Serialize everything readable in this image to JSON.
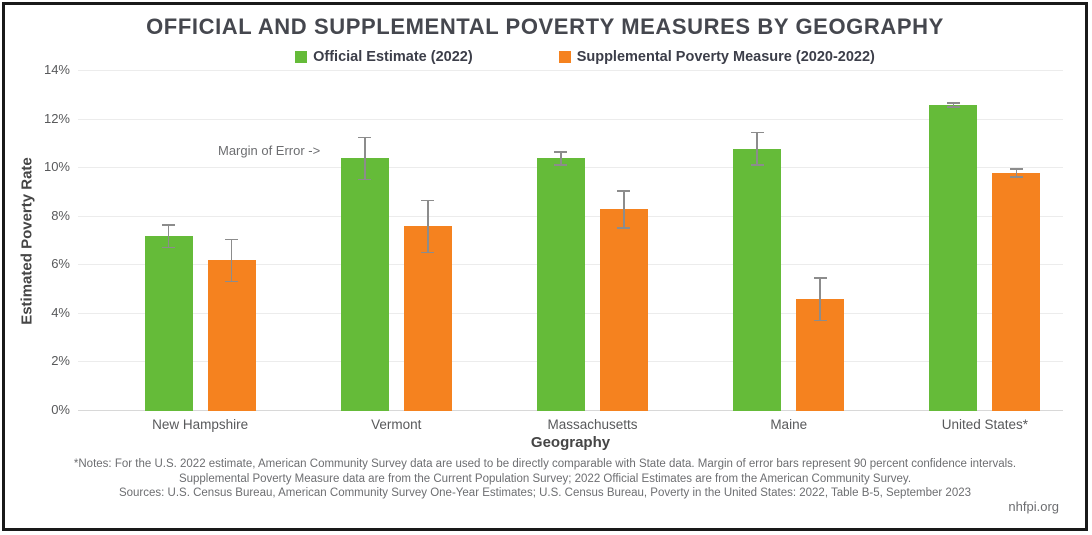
{
  "footer": {
    "notes_line1": "*Notes: For the U.S. 2022 estimate, American Community Survey data are used to be directly comparable with State data. Margin of error bars represent 90 percent confidence intervals.",
    "notes_line2": "Supplemental Poverty Measure data are from the Current Population Survey; 2022 Official Estimates are from the American Community Survey.",
    "notes_line3": "Sources: U.S. Census Bureau, American Community Survey One-Year Estimates; U.S. Census Bureau, Poverty in the United States: 2022, Table B-5, September 2023",
    "website": "nhfpi.org"
  },
  "chart_data": {
    "type": "bar",
    "title": "OFFICIAL AND SUPPLEMENTAL POVERTY MEASURES BY GEOGRAPHY",
    "xlabel": "Geography",
    "ylabel": "Estimated Poverty Rate",
    "ylim": [
      0,
      14
    ],
    "ytick_step": 2,
    "ytick_suffix": "%",
    "grid": true,
    "legend_position": "top",
    "categories": [
      "New Hampshire",
      "Vermont",
      "Massachusetts",
      "Maine",
      "United States*"
    ],
    "series": [
      {
        "name": "Official Estimate (2022)",
        "color": "#65BB39",
        "values": [
          7.2,
          10.4,
          10.4,
          10.8,
          12.6
        ],
        "margin_of_error": [
          0.5,
          0.9,
          0.3,
          0.7,
          0.12
        ]
      },
      {
        "name": "Supplemental Poverty Measure (2020-2022)",
        "color": "#F5821F",
        "values": [
          6.2,
          7.6,
          8.3,
          4.6,
          9.8
        ],
        "margin_of_error": [
          0.9,
          1.1,
          0.8,
          0.9,
          0.2
        ]
      }
    ],
    "error_bar_color": "#8C8C8C",
    "annotation": {
      "text": "Margin of Error ->",
      "target": "Vermont Official Estimate error bar"
    }
  }
}
